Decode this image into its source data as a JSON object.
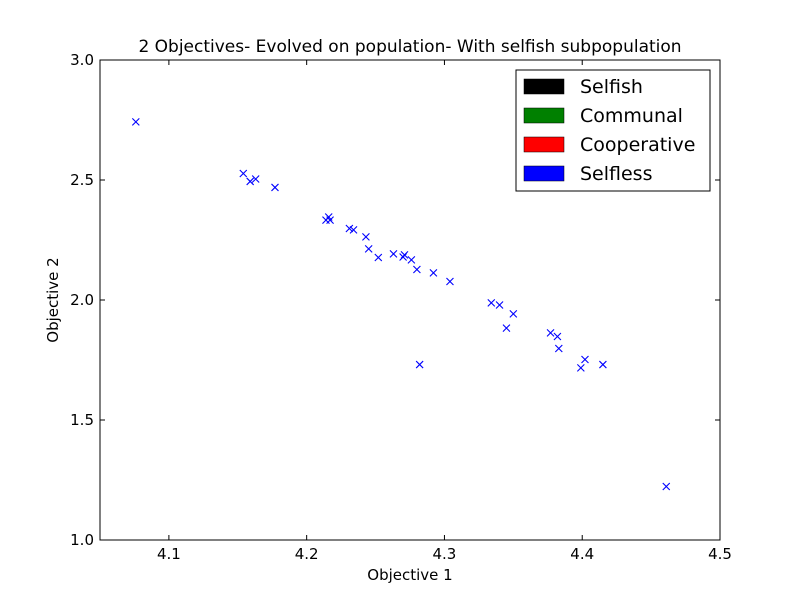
{
  "chart_data": {
    "type": "scatter",
    "title": "2 Objectives- Evolved on population- With selfish subpopulation",
    "xlabel": "Objective 1",
    "ylabel": "Objective 2",
    "xlim": [
      4.05,
      4.5
    ],
    "ylim": [
      1.0,
      3.0
    ],
    "x_ticks": [
      4.1,
      4.2,
      4.3,
      4.4,
      4.5
    ],
    "x_tick_labels": [
      "4.1",
      "4.2",
      "4.3",
      "4.4",
      "4.5"
    ],
    "y_ticks": [
      1.0,
      1.5,
      2.0,
      2.5,
      3.0
    ],
    "y_tick_labels": [
      "1.0",
      "1.5",
      "2.0",
      "2.5",
      "3.0"
    ],
    "grid": false,
    "legend_placement": "top-right",
    "legend": [
      {
        "label": "Selfish",
        "color": "#000000"
      },
      {
        "label": "Communal",
        "color": "#008000"
      },
      {
        "label": "Cooperative",
        "color": "#ff0000"
      },
      {
        "label": "Selfless",
        "color": "#0000ff"
      }
    ],
    "marker": "x",
    "series": [
      {
        "color": "#0000ff",
        "points": [
          [
            4.076,
            2.742
          ],
          [
            4.154,
            2.527
          ],
          [
            4.159,
            2.494
          ],
          [
            4.163,
            2.504
          ],
          [
            4.177,
            2.469
          ],
          [
            4.214,
            2.333
          ],
          [
            4.216,
            2.346
          ],
          [
            4.217,
            2.333
          ],
          [
            4.231,
            2.298
          ],
          [
            4.234,
            2.292
          ],
          [
            4.243,
            2.263
          ],
          [
            4.245,
            2.213
          ],
          [
            4.252,
            2.177
          ],
          [
            4.263,
            2.192
          ],
          [
            4.27,
            2.179
          ],
          [
            4.271,
            2.188
          ],
          [
            4.276,
            2.167
          ],
          [
            4.28,
            2.127
          ],
          [
            4.292,
            2.113
          ],
          [
            4.304,
            2.077
          ],
          [
            4.282,
            1.731
          ],
          [
            4.334,
            1.988
          ],
          [
            4.34,
            1.979
          ],
          [
            4.345,
            1.883
          ],
          [
            4.35,
            1.942
          ],
          [
            4.377,
            1.863
          ],
          [
            4.382,
            1.848
          ],
          [
            4.383,
            1.798
          ],
          [
            4.399,
            1.717
          ],
          [
            4.402,
            1.752
          ],
          [
            4.415,
            1.731
          ],
          [
            4.461,
            1.223
          ]
        ]
      }
    ]
  }
}
